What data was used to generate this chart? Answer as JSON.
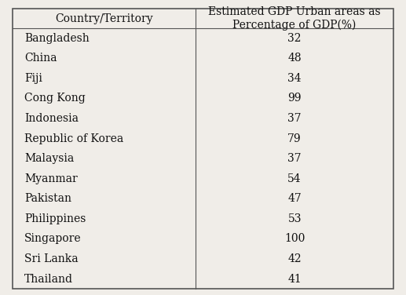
{
  "col1_header": "Country/Territory",
  "col2_header": "Estimated GDP Urban areas as\nPercentage of GDP(%)",
  "rows": [
    [
      "Bangladesh",
      "32"
    ],
    [
      "China",
      "48"
    ],
    [
      "Fiji",
      "34"
    ],
    [
      "Cong Kong",
      "99"
    ],
    [
      "Indonesia",
      "37"
    ],
    [
      "Republic of Korea",
      "79"
    ],
    [
      "Malaysia",
      "37"
    ],
    [
      "Myanmar",
      "54"
    ],
    [
      "Pakistan",
      "47"
    ],
    [
      "Philippines",
      "53"
    ],
    [
      "Singapore",
      "100"
    ],
    [
      "Sri Lanka",
      "42"
    ],
    [
      "Thailand",
      "41"
    ]
  ],
  "bg_color": "#f0ede8",
  "line_color": "#555555",
  "text_color": "#111111",
  "font_size": 10,
  "header_font_size": 10,
  "col_split": 0.48
}
